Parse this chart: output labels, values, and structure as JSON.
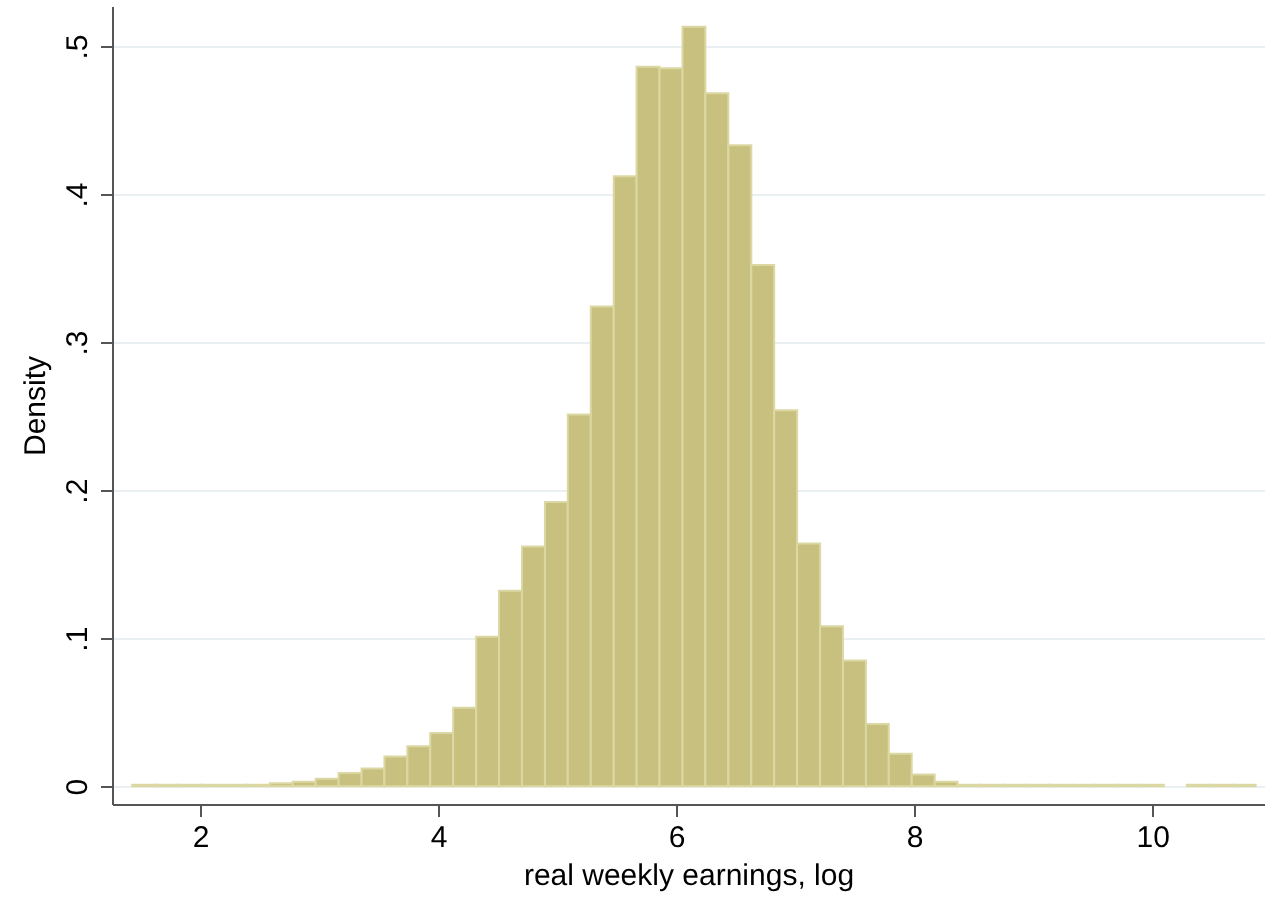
{
  "chart_data": {
    "type": "histogram",
    "xlabel": "real weekly earnings, log",
    "ylabel": "Density",
    "bins": [
      1.43,
      1.623,
      1.815,
      2.008,
      2.201,
      2.393,
      2.586,
      2.779,
      2.971,
      3.164,
      3.357,
      3.549,
      3.742,
      3.934,
      4.127,
      4.32,
      4.512,
      4.705,
      4.898,
      5.09,
      5.283,
      5.476,
      5.668,
      5.861,
      6.054,
      6.246,
      6.439,
      6.632,
      6.824,
      7.017,
      7.21,
      7.402,
      7.595,
      7.787,
      7.98,
      8.173,
      8.365,
      8.558,
      8.751,
      8.943,
      9.136,
      9.329,
      9.521,
      9.714,
      9.907,
      10.099,
      10.292,
      10.485,
      10.677,
      10.87
    ],
    "values": [
      0.001,
      0.001,
      0.001,
      0.001,
      0.001,
      0.001,
      0.002,
      0.003,
      0.005,
      0.009,
      0.012,
      0.02,
      0.027,
      0.036,
      0.053,
      0.101,
      0.132,
      0.162,
      0.192,
      0.251,
      0.324,
      0.412,
      0.486,
      0.485,
      0.513,
      0.468,
      0.433,
      0.352,
      0.254,
      0.164,
      0.108,
      0.085,
      0.042,
      0.022,
      0.008,
      0.003,
      0.001,
      0.001,
      0.001,
      0.001,
      0.001,
      0.001,
      0.001,
      0.001,
      0.001,
      null,
      0.001,
      0.001,
      0.001
    ],
    "color": "#c8c07e",
    "xlim": [
      1.26,
      10.94
    ],
    "xticks": [
      2,
      4,
      6,
      8,
      10
    ],
    "ylim": [
      -0.012,
      0.527
    ],
    "yticks": [
      {
        "value": 0,
        "label": "0"
      },
      {
        "value": 0.1,
        "label": ".1"
      },
      {
        "value": 0.2,
        "label": ".2"
      },
      {
        "value": 0.3,
        "label": ".3"
      },
      {
        "value": 0.4,
        "label": ".4"
      },
      {
        "value": 0.5,
        "label": ".5"
      }
    ],
    "grid": "y"
  }
}
